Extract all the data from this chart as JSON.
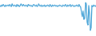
{
  "values": [
    5,
    3,
    6,
    4,
    7,
    5,
    3,
    6,
    4,
    5,
    6,
    4,
    7,
    5,
    3,
    8,
    5,
    4,
    6,
    5,
    3,
    7,
    4,
    6,
    3,
    5,
    8,
    6,
    4,
    7,
    5,
    4,
    6,
    5,
    3,
    7,
    5,
    6,
    4,
    5,
    3,
    6,
    7,
    5,
    4,
    6,
    3,
    5,
    8,
    5,
    4,
    6,
    3,
    5,
    4,
    6,
    3,
    5,
    4,
    6,
    5,
    3,
    7,
    5,
    3,
    6,
    4,
    5,
    6,
    4,
    5,
    3,
    5,
    4,
    6,
    5,
    4,
    3,
    6,
    5,
    4,
    7,
    5,
    3,
    6,
    4,
    5,
    7,
    3,
    5,
    6,
    4,
    3,
    5,
    4,
    6,
    5,
    3,
    7,
    4,
    2,
    -8,
    -15,
    -5,
    -20,
    -18,
    10,
    8,
    -25,
    -30,
    5,
    -10,
    -40,
    -35,
    5,
    3,
    6,
    4,
    5,
    3
  ],
  "line_color": "#4da6d8",
  "background_color": "#ffffff",
  "linewidth": 0.9
}
